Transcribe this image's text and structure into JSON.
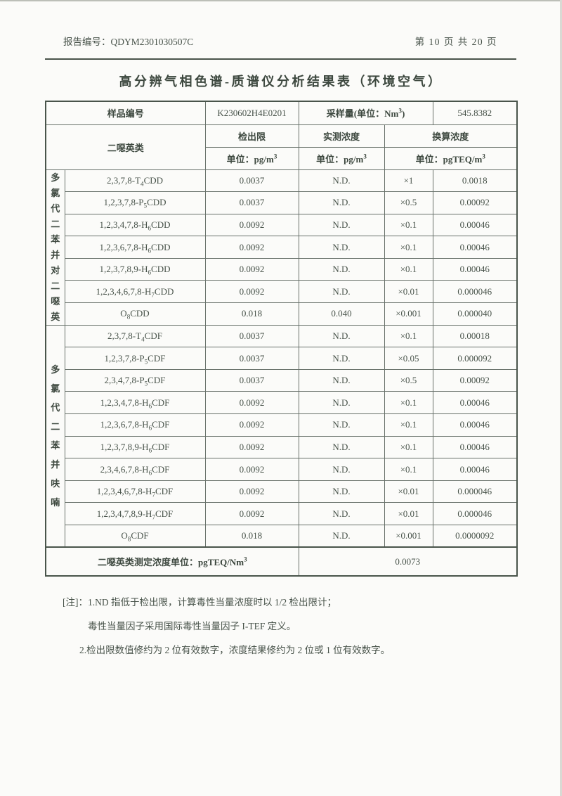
{
  "page": {
    "report_no_label": "报告编号：",
    "report_no": "QDYM2301030507C",
    "page_indicator": "第 10 页 共 20 页",
    "title": "高分辨气相色谱-质谱仪分析结果表（环境空气）"
  },
  "table": {
    "sample_no_label": "样品编号",
    "sample_no": "K230602H4E0201",
    "sample_volume_label": "采样量(单位：Nm³)",
    "sample_volume": "545.8382",
    "dioxin_class_label": "二噁英类",
    "col_detection_limit": "检出限",
    "col_measured": "实测浓度",
    "col_converted": "换算浓度",
    "unit_detection": "单位：pg/m³",
    "unit_measured": "单位：pg/m³",
    "unit_converted": "单位：pgTEQ/m³",
    "groups": [
      {
        "label": "多氯代二苯并对二噁英",
        "rows": [
          {
            "name": "2,3,7,8-T₄CDD",
            "dl": "0.0037",
            "measured": "N.D.",
            "tef": "×1",
            "teq": "0.0018"
          },
          {
            "name": "1,2,3,7,8-P₅CDD",
            "dl": "0.0037",
            "measured": "N.D.",
            "tef": "×0.5",
            "teq": "0.00092"
          },
          {
            "name": "1,2,3,4,7,8-H₆CDD",
            "dl": "0.0092",
            "measured": "N.D.",
            "tef": "×0.1",
            "teq": "0.00046"
          },
          {
            "name": "1,2,3,6,7,8-H₆CDD",
            "dl": "0.0092",
            "measured": "N.D.",
            "tef": "×0.1",
            "teq": "0.00046"
          },
          {
            "name": "1,2,3,7,8,9-H₆CDD",
            "dl": "0.0092",
            "measured": "N.D.",
            "tef": "×0.1",
            "teq": "0.00046"
          },
          {
            "name": "1,2,3,4,6,7,8-H₇CDD",
            "dl": "0.0092",
            "measured": "N.D.",
            "tef": "×0.01",
            "teq": "0.000046"
          },
          {
            "name": "O₈CDD",
            "dl": "0.018",
            "measured": "0.040",
            "tef": "×0.001",
            "teq": "0.000040"
          }
        ]
      },
      {
        "label": "多氯代二苯并呋喃",
        "rows": [
          {
            "name": "2,3,7,8-T₄CDF",
            "dl": "0.0037",
            "measured": "N.D.",
            "tef": "×0.1",
            "teq": "0.00018"
          },
          {
            "name": "1,2,3,7,8-P₅CDF",
            "dl": "0.0037",
            "measured": "N.D.",
            "tef": "×0.05",
            "teq": "0.000092"
          },
          {
            "name": "2,3,4,7,8-P₅CDF",
            "dl": "0.0037",
            "measured": "N.D.",
            "tef": "×0.5",
            "teq": "0.00092"
          },
          {
            "name": "1,2,3,4,7,8-H₆CDF",
            "dl": "0.0092",
            "measured": "N.D.",
            "tef": "×0.1",
            "teq": "0.00046"
          },
          {
            "name": "1,2,3,6,7,8-H₆CDF",
            "dl": "0.0092",
            "measured": "N.D.",
            "tef": "×0.1",
            "teq": "0.00046"
          },
          {
            "name": "1,2,3,7,8,9-H₆CDF",
            "dl": "0.0092",
            "measured": "N.D.",
            "tef": "×0.1",
            "teq": "0.00046"
          },
          {
            "name": "2,3,4,6,7,8-H₆CDF",
            "dl": "0.0092",
            "measured": "N.D.",
            "tef": "×0.1",
            "teq": "0.00046"
          },
          {
            "name": "1,2,3,4,6,7,8-H₇CDF",
            "dl": "0.0092",
            "measured": "N.D.",
            "tef": "×0.01",
            "teq": "0.000046"
          },
          {
            "name": "1,2,3,4,7,8,9-H₇CDF",
            "dl": "0.0092",
            "measured": "N.D.",
            "tef": "×0.01",
            "teq": "0.000046"
          },
          {
            "name": "O₈CDF",
            "dl": "0.018",
            "measured": "N.D.",
            "tef": "×0.001",
            "teq": "0.0000092"
          }
        ]
      }
    ],
    "footer_label": "二噁英类测定浓度单位：pgTEQ/Nm³",
    "footer_value": "0.0073"
  },
  "notes": {
    "prefix": "[注]：",
    "line1": "1.ND 指低于检出限，计算毒性当量浓度时以 1/2 检出限计；",
    "line2": "毒性当量因子采用国际毒性当量因子 I-TEF 定义。",
    "line3": "2.检出限数值修约为 2 位有效数字，浓度结果修约为 2 位或 1 位有效数字。"
  },
  "colors": {
    "text": "#48534a",
    "border": "#68716a",
    "background": "#fbfbf9"
  }
}
